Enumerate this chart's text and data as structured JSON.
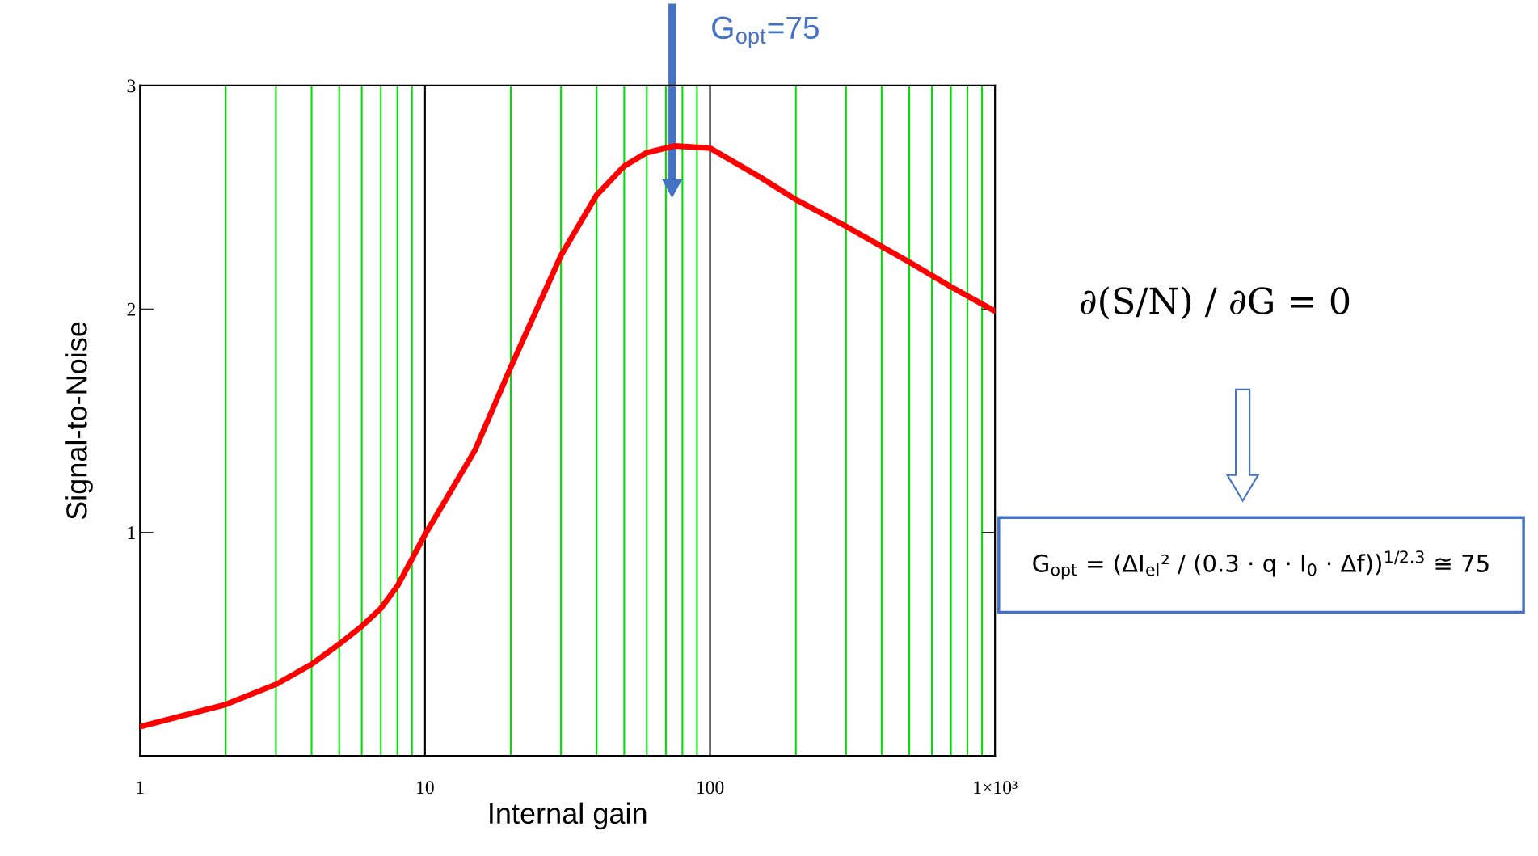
{
  "chart_data": {
    "type": "line",
    "xlabel": "Internal gain",
    "ylabel": "Signal-to-Noise",
    "log": "x",
    "xlim": [
      1,
      1000
    ],
    "ylim": [
      0,
      3
    ],
    "xticks": [
      1,
      {
        "value": 2,
        "label": null
      },
      {
        "value": 3,
        "label": null
      },
      {
        "value": 4,
        "label": null
      },
      {
        "value": 5,
        "label": null
      },
      {
        "value": 6,
        "label": null
      },
      {
        "value": 7,
        "label": null
      },
      {
        "value": 8,
        "label": null
      },
      {
        "value": 9,
        "label": null
      },
      10,
      {
        "value": 20,
        "label": null
      },
      {
        "value": 30,
        "label": null
      },
      {
        "value": 40,
        "label": null
      },
      {
        "value": 50,
        "label": null
      },
      {
        "value": 60,
        "label": null
      },
      {
        "value": 70,
        "label": null
      },
      {
        "value": 80,
        "label": null
      },
      {
        "value": 90,
        "label": null
      },
      100,
      {
        "value": 200,
        "label": null
      },
      {
        "value": 300,
        "label": null
      },
      {
        "value": 400,
        "label": null
      },
      {
        "value": 500,
        "label": null
      },
      {
        "value": 600,
        "label": null
      },
      {
        "value": 700,
        "label": null
      },
      {
        "value": 800,
        "label": null
      },
      {
        "value": 900,
        "label": null
      },
      {
        "value": 1000,
        "label": "1×10³"
      }
    ],
    "yticks": [
      1,
      2,
      3
    ],
    "grid": "x",
    "marker": "none",
    "line_style": "solid",
    "series": [
      {
        "color": "#ff0000",
        "x": [
          1,
          2,
          3,
          4,
          5,
          6,
          7,
          8,
          10,
          15,
          20,
          30,
          40,
          50,
          60,
          75,
          100,
          150,
          200,
          300,
          500,
          700,
          1000
        ],
        "values": [
          0.13,
          0.23,
          0.32,
          0.41,
          0.5,
          0.58,
          0.66,
          0.76,
          0.99,
          1.37,
          1.74,
          2.24,
          2.51,
          2.64,
          2.7,
          2.73,
          2.72,
          2.59,
          2.49,
          2.37,
          2.21,
          2.1,
          1.99
        ]
      }
    ],
    "annotations": [
      "G$_{opt}$=75",
      "∂(S/N) / ∂G = 0",
      "G$_{opt}$ = (ΔI$_{el}$² / (0.3 · q · I$_{0}$ · Δf))$^{1/2.3}$ ≅ 75"
    ]
  }
}
